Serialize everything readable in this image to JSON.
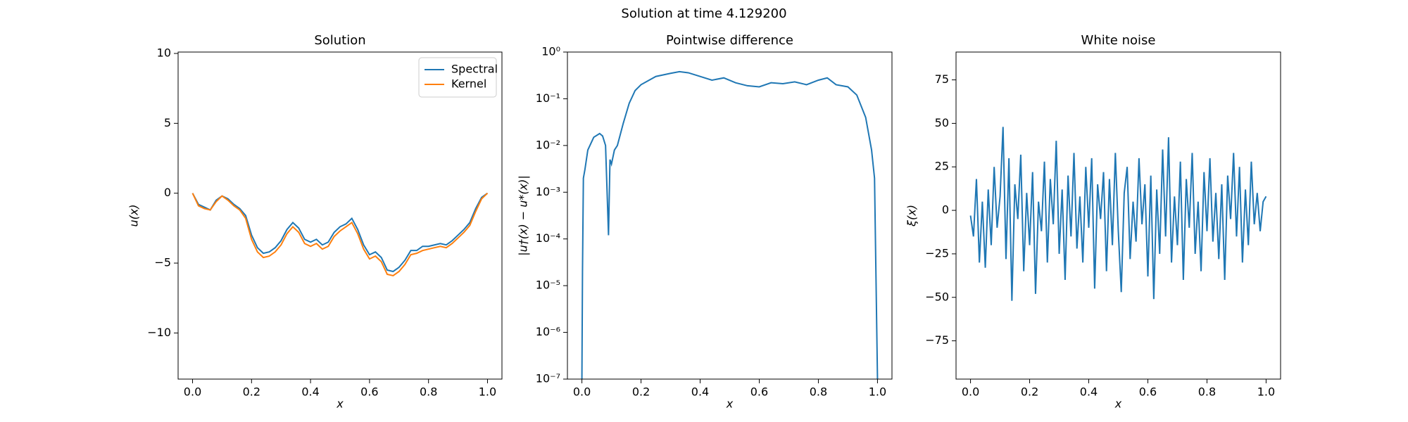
{
  "title": "Solution at time 4.129200",
  "chart_data": [
    {
      "type": "line",
      "title": "Solution",
      "x_label": "x",
      "y_label": "u(x)",
      "x": [
        0,
        0.02,
        0.04,
        0.06,
        0.08,
        0.1,
        0.12,
        0.14,
        0.16,
        0.18,
        0.2,
        0.22,
        0.24,
        0.26,
        0.28,
        0.3,
        0.32,
        0.34,
        0.36,
        0.38,
        0.4,
        0.42,
        0.44,
        0.46,
        0.48,
        0.5,
        0.52,
        0.54,
        0.56,
        0.58,
        0.6,
        0.62,
        0.64,
        0.66,
        0.68,
        0.7,
        0.72,
        0.74,
        0.76,
        0.78,
        0.8,
        0.82,
        0.84,
        0.86,
        0.88,
        0.9,
        0.92,
        0.94,
        0.96,
        0.98,
        1.0
      ],
      "series": [
        {
          "name": "Spectral",
          "color": "#1f77b4",
          "values": [
            0,
            -0.8,
            -1.0,
            -1.2,
            -0.5,
            -0.2,
            -0.4,
            -0.8,
            -1.1,
            -1.6,
            -3.0,
            -3.9,
            -4.3,
            -4.2,
            -3.9,
            -3.4,
            -2.6,
            -2.1,
            -2.5,
            -3.3,
            -3.5,
            -3.3,
            -3.7,
            -3.5,
            -2.8,
            -2.4,
            -2.2,
            -1.8,
            -2.6,
            -3.7,
            -4.4,
            -4.2,
            -4.6,
            -5.5,
            -5.6,
            -5.3,
            -4.8,
            -4.1,
            -4.1,
            -3.8,
            -3.8,
            -3.7,
            -3.6,
            -3.7,
            -3.4,
            -3.0,
            -2.6,
            -2.1,
            -1.1,
            -0.3,
            0
          ]
        },
        {
          "name": "Kernel",
          "color": "#ff7f0e",
          "values": [
            0,
            -0.9,
            -1.1,
            -1.2,
            -0.6,
            -0.2,
            -0.5,
            -0.9,
            -1.2,
            -1.8,
            -3.3,
            -4.2,
            -4.6,
            -4.5,
            -4.2,
            -3.7,
            -2.9,
            -2.4,
            -2.8,
            -3.6,
            -3.8,
            -3.6,
            -4.0,
            -3.8,
            -3.1,
            -2.7,
            -2.4,
            -2.1,
            -2.9,
            -4.0,
            -4.7,
            -4.5,
            -4.9,
            -5.8,
            -5.9,
            -5.6,
            -5.1,
            -4.4,
            -4.3,
            -4.1,
            -4.0,
            -3.9,
            -3.8,
            -3.9,
            -3.6,
            -3.2,
            -2.8,
            -2.3,
            -1.3,
            -0.4,
            0
          ]
        }
      ],
      "xlim": [
        -0.049,
        1.049
      ],
      "xticks": [
        {
          "value": 0,
          "label": "0.0"
        },
        {
          "value": 0.2,
          "label": "0.2"
        },
        {
          "value": 0.4,
          "label": "0.4"
        },
        {
          "value": 0.6,
          "label": "0.6"
        },
        {
          "value": 0.8,
          "label": "0.8"
        },
        {
          "value": 1,
          "label": "1.0"
        }
      ],
      "ylim": [
        -13.3,
        10.1
      ],
      "yticks": [
        {
          "value": -10,
          "label": "−10"
        },
        {
          "value": -5,
          "label": "−5"
        },
        0,
        5,
        10
      ],
      "legend": "upper right"
    },
    {
      "type": "line",
      "title": "Pointwise difference",
      "x_label": "x",
      "y_label": "|u†(x) − u*(x)|",
      "color": "#1f77b4",
      "log_y": true,
      "x": [
        0,
        0.002,
        0.005,
        0.01,
        0.02,
        0.04,
        0.06,
        0.07,
        0.08,
        0.09,
        0.095,
        0.1,
        0.11,
        0.12,
        0.14,
        0.16,
        0.18,
        0.2,
        0.25,
        0.3,
        0.33,
        0.36,
        0.4,
        0.44,
        0.48,
        0.52,
        0.56,
        0.6,
        0.64,
        0.68,
        0.72,
        0.76,
        0.8,
        0.83,
        0.86,
        0.9,
        0.93,
        0.96,
        0.98,
        0.99,
        1.0
      ],
      "values": [
        1e-07,
        2e-05,
        0.002,
        0.003,
        0.008,
        0.015,
        0.018,
        0.016,
        0.01,
        0.00012,
        0.005,
        0.004,
        0.008,
        0.01,
        0.03,
        0.08,
        0.15,
        0.2,
        0.3,
        0.35,
        0.38,
        0.36,
        0.3,
        0.25,
        0.28,
        0.22,
        0.19,
        0.18,
        0.22,
        0.21,
        0.23,
        0.2,
        0.25,
        0.28,
        0.2,
        0.18,
        0.12,
        0.04,
        0.008,
        0.002,
        1e-07
      ],
      "xlim": [
        -0.049,
        1.049
      ],
      "xticks": [
        {
          "value": 0,
          "label": "0.0"
        },
        {
          "value": 0.2,
          "label": "0.2"
        },
        {
          "value": 0.4,
          "label": "0.4"
        },
        {
          "value": 0.6,
          "label": "0.6"
        },
        {
          "value": 0.8,
          "label": "0.8"
        },
        {
          "value": 1,
          "label": "1.0"
        }
      ],
      "ylim": [
        1e-07,
        1
      ],
      "yticks": [
        {
          "value": 1e-07,
          "label": "10⁻⁷"
        },
        {
          "value": 1e-06,
          "label": "10⁻⁶"
        },
        {
          "value": 1e-05,
          "label": "10⁻⁵"
        },
        {
          "value": 0.0001,
          "label": "10⁻⁴"
        },
        {
          "value": 0.001,
          "label": "10⁻³"
        },
        {
          "value": 0.01,
          "label": "10⁻²"
        },
        {
          "value": 0.1,
          "label": "10⁻¹"
        },
        {
          "value": 1,
          "label": "10⁰"
        }
      ]
    },
    {
      "type": "line",
      "title": "White noise",
      "x_label": "x",
      "y_label": "ξ(x)",
      "color": "#1f77b4",
      "x": [
        0,
        0.01,
        0.02,
        0.03,
        0.04,
        0.05,
        0.06,
        0.07,
        0.08,
        0.09,
        0.1,
        0.11,
        0.12,
        0.13,
        0.14,
        0.15,
        0.16,
        0.17,
        0.18,
        0.19,
        0.2,
        0.21,
        0.22,
        0.23,
        0.24,
        0.25,
        0.26,
        0.27,
        0.28,
        0.29,
        0.3,
        0.31,
        0.32,
        0.33,
        0.34,
        0.35,
        0.36,
        0.37,
        0.38,
        0.39,
        0.4,
        0.41,
        0.42,
        0.43,
        0.44,
        0.45,
        0.46,
        0.47,
        0.48,
        0.49,
        0.5,
        0.51,
        0.52,
        0.53,
        0.54,
        0.55,
        0.56,
        0.57,
        0.58,
        0.59,
        0.6,
        0.61,
        0.62,
        0.63,
        0.64,
        0.65,
        0.66,
        0.67,
        0.68,
        0.69,
        0.7,
        0.71,
        0.72,
        0.73,
        0.74,
        0.75,
        0.76,
        0.77,
        0.78,
        0.79,
        0.8,
        0.81,
        0.82,
        0.83,
        0.84,
        0.85,
        0.86,
        0.87,
        0.88,
        0.89,
        0.9,
        0.91,
        0.92,
        0.93,
        0.94,
        0.95,
        0.96,
        0.97,
        0.98,
        0.99,
        1.0
      ],
      "values": [
        -3,
        -15,
        18,
        -30,
        5,
        -33,
        12,
        -20,
        25,
        -10,
        8,
        48,
        -28,
        30,
        -52,
        15,
        -5,
        32,
        -35,
        10,
        -20,
        22,
        -48,
        5,
        -12,
        28,
        -30,
        18,
        -8,
        40,
        -25,
        12,
        -40,
        20,
        -15,
        33,
        -22,
        8,
        -30,
        25,
        -10,
        30,
        -45,
        15,
        -5,
        22,
        -35,
        18,
        -20,
        33,
        -12,
        -47,
        10,
        25,
        -28,
        5,
        -18,
        30,
        -8,
        15,
        -38,
        20,
        -51,
        12,
        -25,
        35,
        -15,
        42,
        -30,
        8,
        -20,
        28,
        -40,
        18,
        -10,
        33,
        -25,
        5,
        -35,
        22,
        -12,
        30,
        -18,
        10,
        -28,
        15,
        -40,
        20,
        -5,
        33,
        -15,
        25,
        -30,
        12,
        -20,
        28,
        -8,
        10,
        -12,
        5,
        8
      ],
      "xlim": [
        -0.049,
        1.049
      ],
      "xticks": [
        {
          "value": 0,
          "label": "0.0"
        },
        {
          "value": 0.2,
          "label": "0.2"
        },
        {
          "value": 0.4,
          "label": "0.4"
        },
        {
          "value": 0.6,
          "label": "0.6"
        },
        {
          "value": 0.8,
          "label": "0.8"
        },
        {
          "value": 1,
          "label": "1.0"
        }
      ],
      "ylim": [
        -97,
        91
      ],
      "yticks": [
        {
          "value": -75,
          "label": "−75"
        },
        {
          "value": -50,
          "label": "−50"
        },
        {
          "value": -25,
          "label": "−25"
        },
        0,
        25,
        50,
        75
      ]
    }
  ]
}
